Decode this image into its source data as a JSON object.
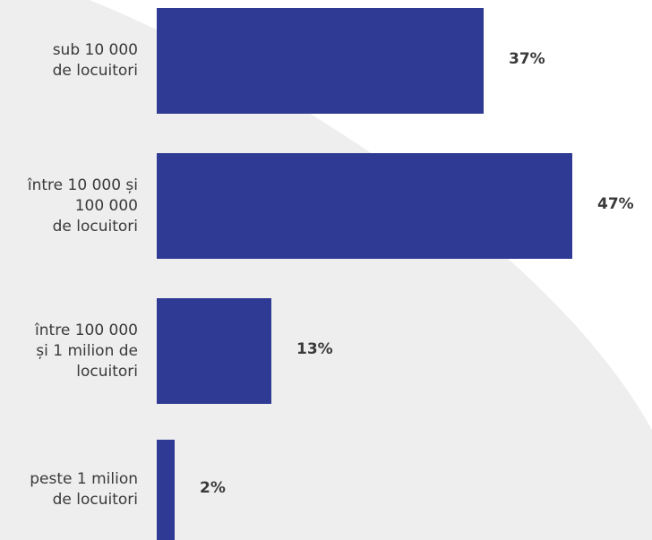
{
  "chart_data": {
    "type": "bar",
    "orientation": "horizontal",
    "categories": [
      "sub 10 000\nde locuitori",
      "între 10 000 și\n100 000\nde locuitori",
      "între 100 000\nși 1 milion de\nlocuitori",
      "peste 1 milion\nde locuitori"
    ],
    "values": [
      37,
      47,
      13,
      2
    ],
    "value_labels": [
      "37%",
      "47%",
      "13%",
      "2%"
    ],
    "xlim": [
      0,
      47
    ],
    "grid": false,
    "colors": {
      "bar": "#2e3a93",
      "background_shape": "#eeeeee",
      "text": "#3a3a3a"
    }
  }
}
